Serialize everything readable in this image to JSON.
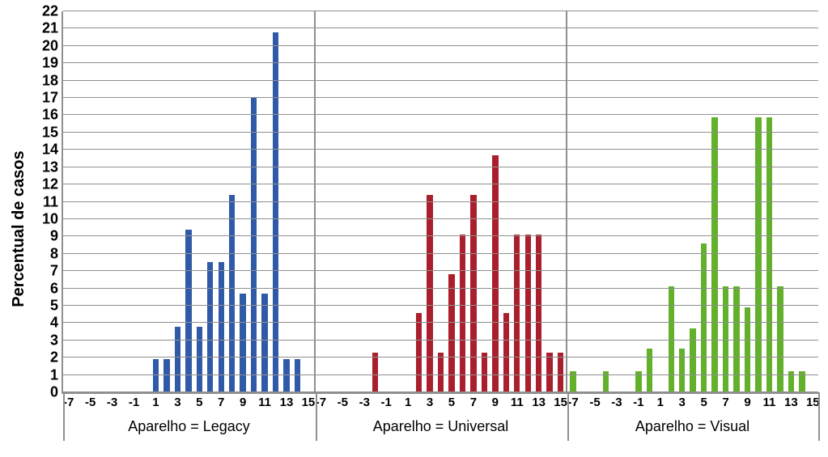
{
  "chart": {
    "type": "bar",
    "y_axis_title": "Percentual  de casos",
    "background_color": "#ffffff",
    "grid_color": "#8f8f8f",
    "axis_color": "#8f8f8f",
    "tick_label_fontsize": 18,
    "tick_label_fontweight": 700,
    "y_axis_title_fontsize": 20,
    "y_axis_title_fontweight": 700,
    "panel_title_fontsize": 18,
    "bar_width_ratio": 0.55,
    "ylim": [
      0,
      22
    ],
    "ytick_step": 1,
    "x_label_step": 2,
    "panels": [
      {
        "title": "Aparelho = Legacy",
        "color": "#305aa8",
        "x_range": [
          -7,
          15
        ],
        "values": {
          "1": 1.9,
          "2": 1.9,
          "3": 3.8,
          "4": 9.4,
          "5": 3.8,
          "6": 7.5,
          "7": 7.5,
          "8": 11.4,
          "9": 5.7,
          "10": 17.0,
          "11": 5.7,
          "12": 20.8,
          "13": 1.9,
          "14": 1.9
        }
      },
      {
        "title": "Aparelho = Universal",
        "color": "#aa1f2d",
        "x_range": [
          -7,
          15
        ],
        "values": {
          "-2": 2.3,
          "2": 4.6,
          "3": 11.4,
          "4": 2.3,
          "5": 6.8,
          "6": 9.1,
          "7": 11.4,
          "8": 2.3,
          "9": 13.7,
          "10": 4.6,
          "11": 9.1,
          "12": 9.1,
          "13": 9.1,
          "14": 2.3,
          "15": 2.3
        }
      },
      {
        "title": "Aparelho = Visual",
        "color": "#63b02b",
        "x_range": [
          -7,
          15
        ],
        "values": {
          "-7": 1.2,
          "-4": 1.2,
          "-1": 1.2,
          "0": 2.5,
          "2": 6.1,
          "3": 2.5,
          "4": 3.7,
          "5": 8.6,
          "6": 15.9,
          "7": 6.1,
          "8": 6.1,
          "9": 4.9,
          "10": 15.9,
          "11": 15.9,
          "12": 6.1,
          "13": 1.2,
          "14": 1.2
        }
      }
    ]
  }
}
